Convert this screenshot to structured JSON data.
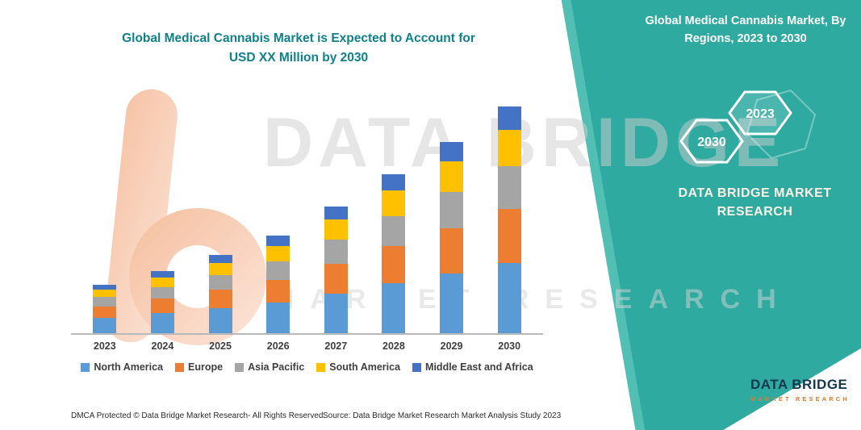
{
  "page": {
    "title_line1": "Global Medical Cannabis Market is Expected to Account for",
    "title_line2": "USD XX Million by 2030",
    "watermark_line1": "DATA BRIDGE",
    "watermark_line2": "MARKET RESEARCH",
    "footer_left": "DMCA Protected © Data Bridge Market Research-  All Rights Reserved.",
    "footer_source": "Source: Data Bridge Market Research  Market Analysis Study 2023"
  },
  "side_panel": {
    "bg_color": "#2EAAA1",
    "heading": "Global Medical Cannabis Market, By Regions, 2023 to 2030",
    "badge_front": "2023",
    "badge_back": "2030",
    "brand_line1": "DATA BRIDGE MARKET",
    "brand_line2": "RESEARCH"
  },
  "brand_logo": {
    "name": "DATA BRIDGE",
    "tagline": "MARKET RESEARCH"
  },
  "chart_data": {
    "type": "bar",
    "stacked": true,
    "title": "Global Medical Cannabis Market is Expected to Account for USD XX Million by 2030",
    "xlabel": "",
    "ylabel": "",
    "legend_position": "bottom",
    "grid": false,
    "categories": [
      "2023",
      "2024",
      "2025",
      "2026",
      "2027",
      "2028",
      "2029",
      "2030"
    ],
    "series": [
      {
        "name": "North America",
        "color": "#5B9BD5",
        "values": [
          20,
          26,
          33,
          40,
          52,
          65,
          78,
          92
        ]
      },
      {
        "name": "Europe",
        "color": "#ED7D31",
        "values": [
          15,
          19,
          24,
          30,
          39,
          49,
          59,
          70
        ]
      },
      {
        "name": "Asia Pacific",
        "color": "#A5A5A5",
        "values": [
          12,
          15,
          19,
          24,
          31,
          39,
          47,
          56
        ]
      },
      {
        "name": "South America",
        "color": "#FFC000",
        "values": [
          10,
          13,
          16,
          20,
          26,
          33,
          40,
          47
        ]
      },
      {
        "name": "Middle East and Africa",
        "color": "#4472C4",
        "values": [
          6,
          8,
          10,
          13,
          17,
          21,
          26,
          31
        ]
      }
    ]
  }
}
